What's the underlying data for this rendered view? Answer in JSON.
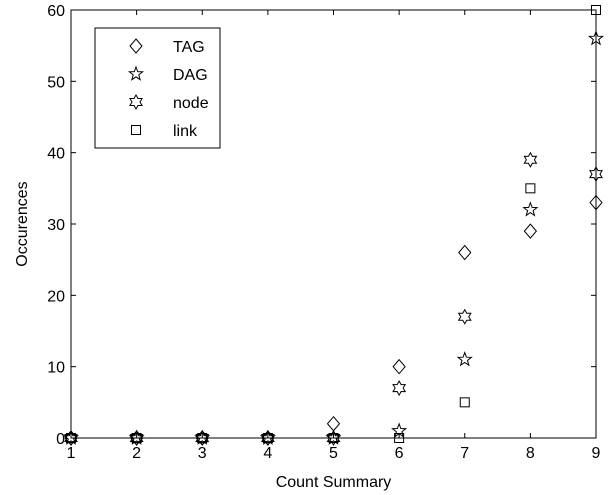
{
  "chart_data": {
    "type": "scatter",
    "xlabel": "Count Summary",
    "ylabel": "Occurences",
    "xlim": [
      1,
      9
    ],
    "ylim": [
      0,
      60
    ],
    "x_ticks": [
      "1",
      "2",
      "3",
      "4",
      "5",
      "6",
      "7",
      "8",
      "9"
    ],
    "y_ticks": [
      "0",
      "10",
      "20",
      "30",
      "40",
      "50",
      "60"
    ],
    "grid": false,
    "legend_position": "top-left",
    "x": [
      1,
      2,
      3,
      4,
      5,
      6,
      7,
      8,
      9
    ],
    "series": [
      {
        "name": "TAG",
        "marker": "diamond",
        "values": [
          0,
          0,
          0,
          0,
          2,
          10,
          26,
          29,
          33
        ]
      },
      {
        "name": "DAG",
        "marker": "star",
        "values": [
          0,
          0,
          0,
          0,
          0,
          1,
          11,
          32,
          56
        ]
      },
      {
        "name": "node",
        "marker": "hexagram",
        "values": [
          0,
          0,
          0,
          0,
          0,
          7,
          17,
          39,
          37
        ]
      },
      {
        "name": "link",
        "marker": "square",
        "values": [
          0,
          0,
          0,
          0,
          0,
          0,
          5,
          35,
          60
        ]
      }
    ]
  }
}
